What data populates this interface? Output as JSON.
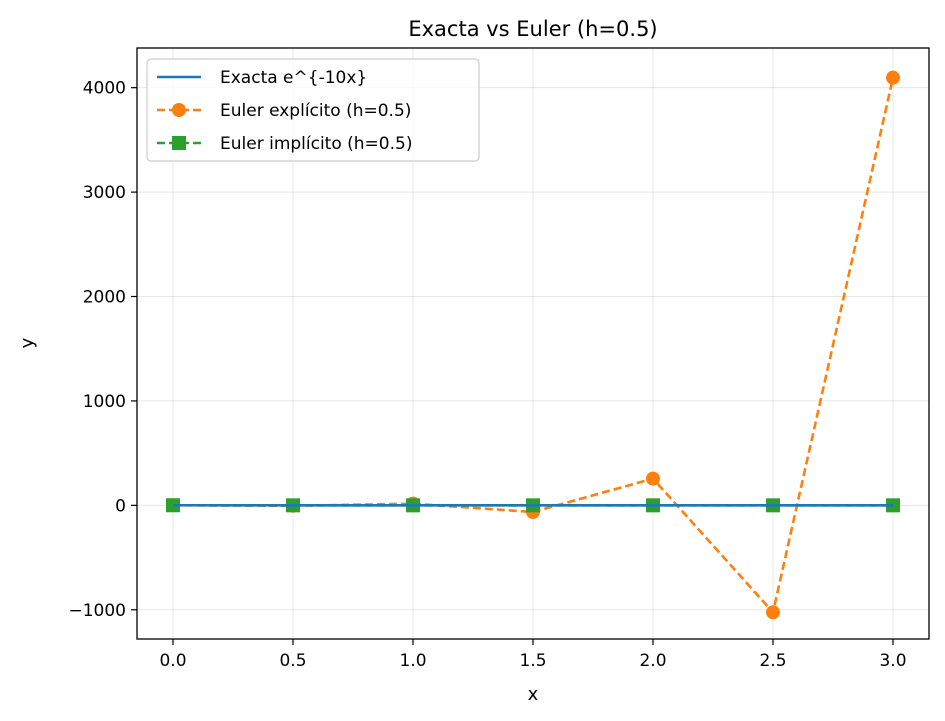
{
  "chart_data": {
    "type": "line",
    "title": "Exacta vs Euler (h=0.5)",
    "xlabel": "x",
    "ylabel": "y",
    "xlim": [
      -0.15,
      3.15
    ],
    "ylim": [
      -1280,
      4380
    ],
    "xticks": [
      0.0,
      0.5,
      1.0,
      1.5,
      2.0,
      2.5,
      3.0
    ],
    "xtick_labels": [
      "0.0",
      "0.5",
      "1.0",
      "1.5",
      "2.0",
      "2.5",
      "3.0"
    ],
    "yticks": [
      -1000,
      0,
      1000,
      2000,
      3000,
      4000
    ],
    "ytick_labels": [
      "−1000",
      "0",
      "1000",
      "2000",
      "3000",
      "4000"
    ],
    "grid": true,
    "legend_position": "top-left",
    "series": [
      {
        "name": "Exacta e^{-10x}",
        "color": "#1f77b4",
        "style": "solid",
        "marker": "none",
        "x": [
          0.0,
          0.25,
          0.5,
          0.75,
          1.0,
          1.5,
          2.0,
          2.5,
          3.0
        ],
        "values": [
          1.0,
          0.082,
          0.0067,
          0.00055,
          4.54e-05,
          0.0,
          0.0,
          0.0,
          0.0
        ]
      },
      {
        "name": "Euler explícito (h=0.5)",
        "color": "#ff7f0e",
        "style": "dashed",
        "marker": "circle",
        "x": [
          0.0,
          0.5,
          1.0,
          1.5,
          2.0,
          2.5,
          3.0
        ],
        "values": [
          1,
          -4,
          16,
          -64,
          256,
          -1024,
          4096
        ]
      },
      {
        "name": "Euler implícito (h=0.5)",
        "color": "#2ca02c",
        "style": "dashed",
        "marker": "square",
        "x": [
          0.0,
          0.5,
          1.0,
          1.5,
          2.0,
          2.5,
          3.0
        ],
        "values": [
          1,
          0.1667,
          0.0278,
          0.0046,
          0.00077,
          0.00013,
          2.1e-05
        ]
      }
    ]
  }
}
